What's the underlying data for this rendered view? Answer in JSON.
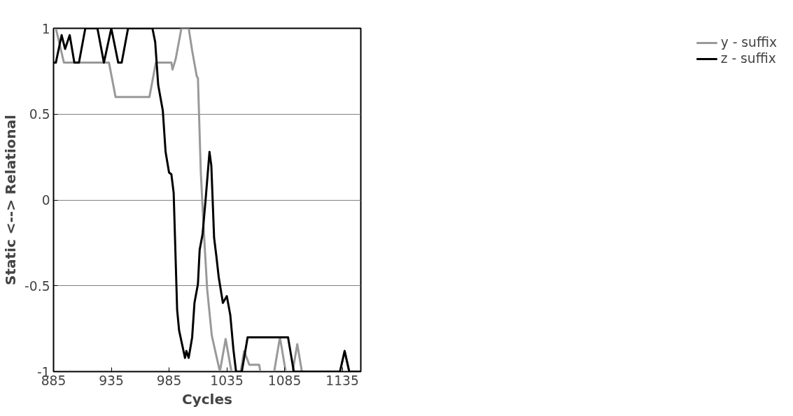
{
  "chart_data": {
    "type": "line",
    "xlabel": "Cycles",
    "ylabel": "Static <--> Relational",
    "xlim": [
      885,
      1151
    ],
    "xticks": [
      885,
      935,
      985,
      1035,
      1085,
      1135
    ],
    "ylim": [
      -1,
      1
    ],
    "yticks": [
      -1,
      -0.5,
      0,
      0.5,
      1
    ],
    "grid": "y",
    "legend": "right",
    "marker": "none",
    "line_style": "solid",
    "series": [
      {
        "name": "y - suffix",
        "color": "#999999",
        "x": [
          885,
          887,
          894,
          933,
          938.7,
          968,
          973.6,
          987,
          988,
          990.7,
          995.7,
          1002,
          1005,
          1009,
          1010,
          1012.5,
          1015,
          1018,
          1022,
          1029,
          1034,
          1039,
          1047,
          1050,
          1054.5,
          1063,
          1064,
          1076,
          1081,
          1086,
          1092,
          1096,
          1100,
          1133,
          1137,
          1141,
          1151
        ],
        "values": [
          1,
          1,
          0.8,
          0.8,
          0.6,
          0.6,
          0.8,
          0.8,
          0.76,
          0.82,
          1,
          1,
          0.87,
          0.72,
          0.71,
          0.16,
          -0.17,
          -0.52,
          -0.79,
          -1,
          -0.81,
          -1,
          -1,
          -0.88,
          -0.96,
          -0.96,
          -1,
          -1,
          -0.8,
          -1,
          -1,
          -0.84,
          -1,
          -1,
          -0.88,
          -1,
          -1
        ]
      },
      {
        "name": "z - suffix",
        "color": "#000000",
        "x": [
          885,
          887,
          892,
          895,
          899,
          903,
          907,
          912.5,
          923,
          928.6,
          935,
          941,
          944,
          949.5,
          970.6,
          973,
          975.6,
          979.6,
          982,
          985,
          987,
          989,
          992,
          993.7,
          998.8,
          1000,
          1002,
          1005,
          1007,
          1010,
          1011.5,
          1014,
          1016.5,
          1020,
          1021.6,
          1024,
          1026,
          1028,
          1031.6,
          1035,
          1038,
          1040.7,
          1043,
          1048,
          1053,
          1088,
          1093,
          1133,
          1137,
          1141,
          1151
        ],
        "values": [
          0.8,
          0.8,
          0.96,
          0.88,
          0.96,
          0.8,
          0.8,
          1,
          1,
          0.8,
          1,
          0.8,
          0.8,
          1,
          1,
          0.92,
          0.67,
          0.52,
          0.28,
          0.16,
          0.15,
          0.04,
          -0.64,
          -0.76,
          -0.92,
          -0.88,
          -0.92,
          -0.8,
          -0.6,
          -0.49,
          -0.29,
          -0.2,
          -0.01,
          0.28,
          0.2,
          -0.22,
          -0.33,
          -0.45,
          -0.6,
          -0.56,
          -0.67,
          -0.87,
          -1,
          -1,
          -0.8,
          -0.8,
          -1,
          -1,
          -0.88,
          -1,
          -1
        ]
      }
    ]
  }
}
